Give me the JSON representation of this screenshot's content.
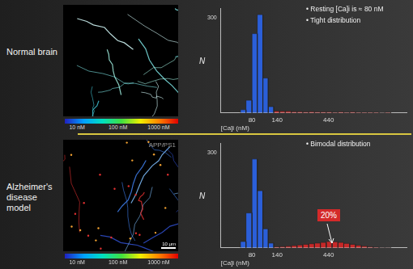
{
  "chart_data": [
    {
      "type": "histogram",
      "xlabel": "[Ca]i (nM)",
      "ylabel": "N",
      "annotations": [
        "• Resting [Ca]i is ≈ 80 nM",
        "• Tight distribution"
      ],
      "log": "x",
      "grid": false,
      "legend": "none",
      "bins": [
        62,
        70,
        80,
        90,
        102,
        115,
        130,
        148,
        168,
        192,
        218,
        248,
        283,
        322,
        367,
        418,
        476,
        543,
        618,
        705,
        803,
        915,
        1043,
        1189,
        1355,
        1545,
        1761
      ],
      "counts": [
        10,
        40,
        250,
        310,
        110,
        20,
        6,
        5,
        5,
        4,
        4,
        3,
        4,
        3,
        3,
        3,
        2,
        3,
        2,
        3,
        2,
        2,
        2,
        2,
        1,
        2
      ],
      "colors": [
        "#2b5fd9",
        "#2b5fd9",
        "#2b5fd9",
        "#2b5fd9",
        "#2b5fd9",
        "#2b5fd9",
        "#c62828",
        "#c62828",
        "#c62828",
        "#c62828",
        "#c62828",
        "#c62828",
        "#c62828",
        "#c62828",
        "#c62828",
        "#c62828",
        "#c62828",
        "#c62828",
        "#c62828",
        "#c62828",
        "#c62828",
        "#c62828",
        "#c62828",
        "#c62828",
        "#c62828",
        "#c62828"
      ],
      "xlim": [
        40,
        2500
      ],
      "xticks": [
        80,
        140,
        440
      ],
      "ylim": [
        0,
        330
      ],
      "yticks": [
        300
      ]
    },
    {
      "type": "histogram",
      "xlabel": "[Ca]i (nM)",
      "ylabel": "N",
      "annotations": [
        "• Bimodal distribution"
      ],
      "callout": "20%",
      "log": "x",
      "grid": false,
      "legend": "none",
      "bins": [
        62,
        70,
        80,
        90,
        102,
        115,
        130,
        148,
        168,
        192,
        218,
        248,
        283,
        322,
        367,
        418,
        476,
        543,
        618,
        705,
        803,
        915,
        1043,
        1189,
        1355,
        1545,
        1761
      ],
      "counts": [
        20,
        110,
        280,
        180,
        60,
        15,
        3,
        4,
        5,
        7,
        9,
        11,
        13,
        15,
        17,
        20,
        19,
        17,
        14,
        11,
        8,
        5,
        3,
        2,
        1,
        1
      ],
      "colors": [
        "#2b5fd9",
        "#2b5fd9",
        "#2b5fd9",
        "#2b5fd9",
        "#2b5fd9",
        "#2b5fd9",
        "#c62828",
        "#c62828",
        "#c62828",
        "#c62828",
        "#c62828",
        "#c62828",
        "#c62828",
        "#c62828",
        "#c62828",
        "#c62828",
        "#c62828",
        "#c62828",
        "#c62828",
        "#c62828",
        "#c62828",
        "#c62828",
        "#c62828",
        "#c62828",
        "#c62828",
        "#c62828"
      ],
      "xlim": [
        40,
        2500
      ],
      "xticks": [
        80,
        140,
        440
      ],
      "ylim": [
        0,
        330
      ],
      "yticks": [
        300
      ]
    }
  ],
  "panels": [
    {
      "label": "Normal brain",
      "image": {
        "colorbar": {
          "range": [
            5,
            3000
          ],
          "ticks": [
            {
              "value": 10,
              "label": "10 nM"
            },
            {
              "value": 100,
              "label": "100 nM"
            },
            {
              "value": 1000,
              "label": "1000 nM"
            }
          ]
        }
      }
    },
    {
      "label": "Alzheimer's disease model",
      "image": {
        "label": "APP/PS1",
        "scale_bar": "10 μm",
        "colorbar": {
          "range": [
            5,
            3000
          ],
          "ticks": [
            {
              "value": 10,
              "label": "10 nM"
            },
            {
              "value": 100,
              "label": "100 nM"
            },
            {
              "value": 1000,
              "label": "1000 nM"
            }
          ]
        }
      }
    }
  ]
}
